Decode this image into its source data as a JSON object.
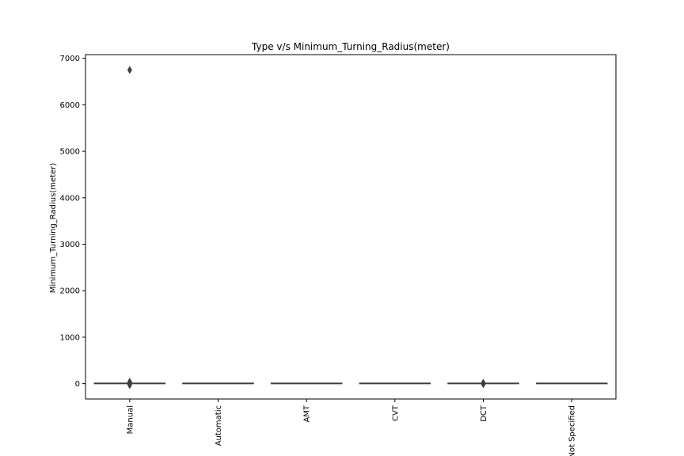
{
  "chart_data": {
    "type": "box",
    "title": "Type v/s Minimum_Turning_Radius(meter)",
    "xlabel": "",
    "ylabel": "Minimum_Turning_Radius(meter)",
    "ylim": [
      -330,
      7080
    ],
    "yticks": [
      0,
      1000,
      2000,
      3000,
      4000,
      5000,
      6000,
      7000
    ],
    "grid": false,
    "categories": [
      "Manual",
      "Automatic",
      "AMT",
      "CVT",
      "DCT",
      "Not Specified"
    ],
    "boxes": [
      {
        "category": "Manual",
        "whisker_low": 0,
        "q1": 5,
        "median": 5,
        "q3": 5.5,
        "whisker_high": 10,
        "outliers": [
          6750,
          40,
          25,
          15,
          -15,
          -30
        ]
      },
      {
        "category": "Automatic",
        "whisker_low": 0,
        "q1": 5,
        "median": 5.3,
        "q3": 5.6,
        "whisker_high": 10,
        "outliers": []
      },
      {
        "category": "AMT",
        "whisker_low": 0,
        "q1": 4.7,
        "median": 5,
        "q3": 5.2,
        "whisker_high": 10,
        "outliers": []
      },
      {
        "category": "CVT",
        "whisker_low": 0,
        "q1": 5,
        "median": 5.2,
        "q3": 5.5,
        "whisker_high": 10,
        "outliers": []
      },
      {
        "category": "DCT",
        "whisker_low": 0,
        "q1": 5,
        "median": 5.3,
        "q3": 5.6,
        "whisker_high": 10,
        "outliers": [
          20,
          -10
        ]
      },
      {
        "category": "Not Specified",
        "whisker_low": 0,
        "q1": 4.9,
        "median": 5.1,
        "q3": 5.3,
        "whisker_high": 10,
        "outliers": []
      }
    ],
    "colors": {
      "box_fill": "#4a6c9b",
      "line": "#3d3d3d",
      "axis": "#000000"
    }
  }
}
